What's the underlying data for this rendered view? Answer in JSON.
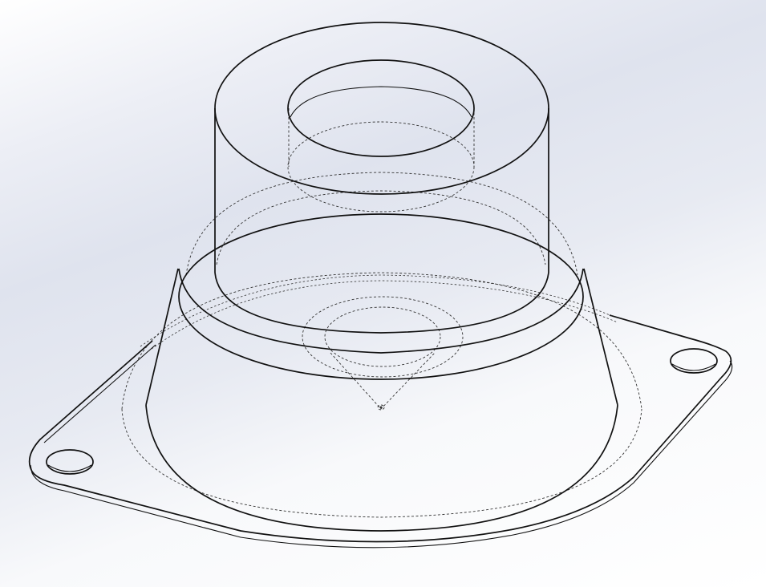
{
  "view": {
    "mode": "hidden-lines-visible",
    "background": {
      "top": "#ffffff",
      "middle": "#dfe3ee",
      "bottom": "#ffffff"
    },
    "colors": {
      "visible_edge": "#111111",
      "hidden_edge": "#333333"
    }
  },
  "model": {
    "features": [
      "mounting-flange",
      "flange-mounting-hole-left",
      "flange-mounting-hole-right",
      "conical-body",
      "cylindrical-boss",
      "bore-hole",
      "internal-cone-tip"
    ]
  }
}
